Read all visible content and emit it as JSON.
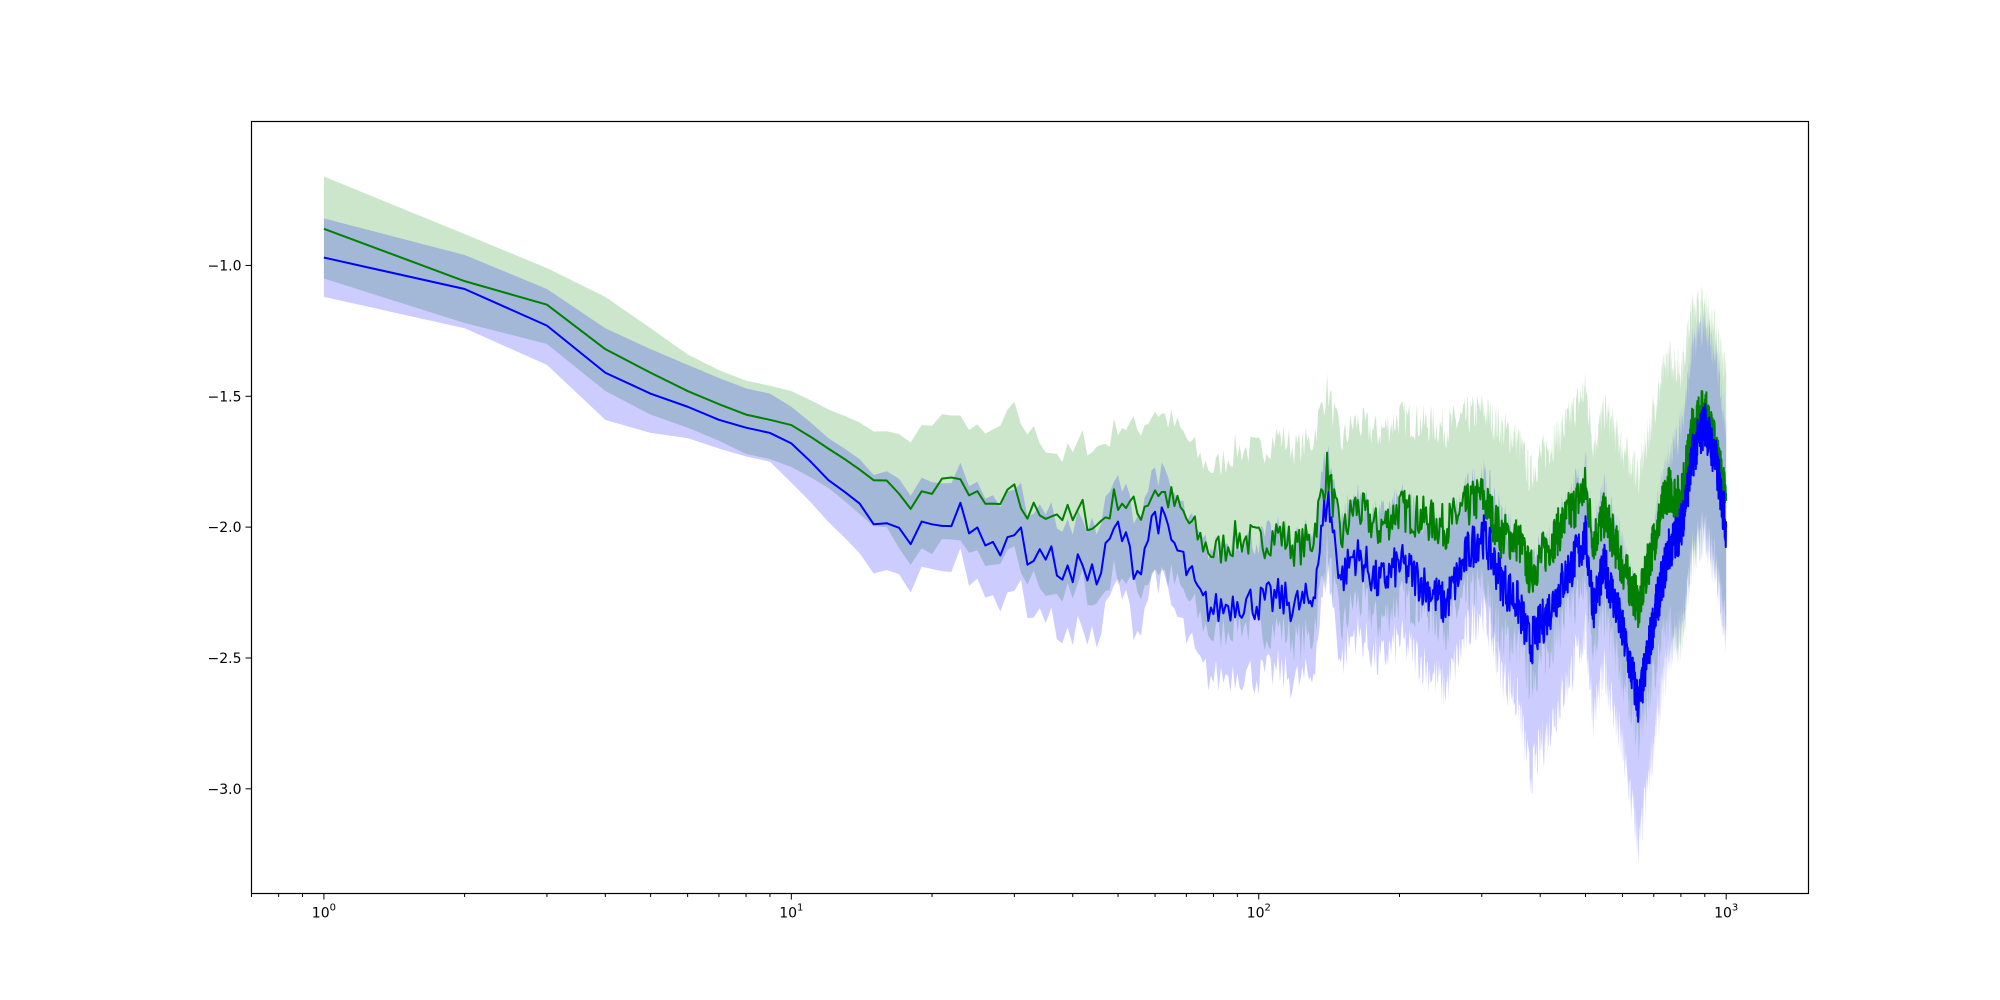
{
  "chart_data": {
    "type": "line",
    "title": "",
    "xlabel": "",
    "ylabel": "",
    "x_scale": "log",
    "xlim": [
      0.7,
      1500
    ],
    "ylim": [
      -3.4,
      -0.45
    ],
    "grid": false,
    "x_ticks": [
      {
        "value": 1,
        "base": "10",
        "exp": "0"
      },
      {
        "value": 10,
        "base": "10",
        "exp": "1"
      },
      {
        "value": 100,
        "base": "10",
        "exp": "2"
      },
      {
        "value": 1000,
        "base": "10",
        "exp": "3"
      }
    ],
    "y_ticks": [
      {
        "value": -1.0,
        "label": "−1.0"
      },
      {
        "value": -1.5,
        "label": "−1.5"
      },
      {
        "value": -2.0,
        "label": "−2.0"
      },
      {
        "value": -2.5,
        "label": "−2.5"
      },
      {
        "value": -3.0,
        "label": "−3.0"
      }
    ],
    "series": [
      {
        "color": "#008000",
        "band_color": "#008000",
        "band_opacity": 0.2,
        "x": [
          1,
          2,
          3,
          4,
          5,
          6,
          7,
          8,
          9,
          10,
          12,
          14,
          16,
          17,
          18,
          20,
          22,
          23,
          24,
          26,
          28,
          30,
          32,
          35,
          38,
          40,
          42,
          45,
          48,
          50,
          55,
          60,
          65,
          70,
          75,
          80,
          90,
          100,
          110,
          120,
          130,
          140,
          150,
          160,
          170,
          180,
          200,
          220,
          250,
          280,
          300,
          330,
          360,
          380,
          400,
          450,
          500,
          520,
          550,
          600,
          650,
          700,
          750,
          800,
          850,
          900,
          950,
          1000
        ],
        "mean": [
          -0.86,
          -1.06,
          -1.15,
          -1.32,
          -1.41,
          -1.48,
          -1.53,
          -1.57,
          -1.59,
          -1.61,
          -1.7,
          -1.78,
          -1.84,
          -1.89,
          -1.89,
          -1.87,
          -1.84,
          -1.78,
          -1.88,
          -1.93,
          -1.92,
          -1.88,
          -1.95,
          -1.93,
          -1.95,
          -1.98,
          -1.94,
          -2.0,
          -1.93,
          -1.88,
          -1.95,
          -1.85,
          -1.9,
          -1.97,
          -2.05,
          -2.1,
          -2.04,
          -2.06,
          -2.02,
          -2.08,
          -2.05,
          -1.78,
          -2.05,
          -1.92,
          -1.96,
          -2.01,
          -1.93,
          -1.96,
          -2.0,
          -1.92,
          -1.88,
          -2.03,
          -2.05,
          -2.18,
          -2.12,
          -1.98,
          -1.85,
          -2.05,
          -1.95,
          -2.15,
          -2.3,
          -2.05,
          -1.85,
          -1.9,
          -1.6,
          -1.55,
          -1.7,
          -1.9
        ],
        "upper": [
          -0.66,
          -0.88,
          -1.01,
          -1.12,
          -1.24,
          -1.34,
          -1.4,
          -1.44,
          -1.46,
          -1.48,
          -1.55,
          -1.6,
          -1.65,
          -1.66,
          -1.64,
          -1.61,
          -1.6,
          -1.54,
          -1.63,
          -1.66,
          -1.62,
          -1.56,
          -1.63,
          -1.68,
          -1.73,
          -1.72,
          -1.67,
          -1.7,
          -1.66,
          -1.6,
          -1.63,
          -1.55,
          -1.6,
          -1.66,
          -1.74,
          -1.78,
          -1.7,
          -1.71,
          -1.65,
          -1.7,
          -1.67,
          -1.47,
          -1.68,
          -1.6,
          -1.62,
          -1.64,
          -1.58,
          -1.6,
          -1.62,
          -1.58,
          -1.55,
          -1.62,
          -1.67,
          -1.8,
          -1.73,
          -1.62,
          -1.47,
          -1.68,
          -1.55,
          -1.7,
          -1.8,
          -1.55,
          -1.35,
          -1.4,
          -1.15,
          -1.15,
          -1.25,
          -1.42
        ],
        "lower": [
          -1.05,
          -1.22,
          -1.3,
          -1.48,
          -1.57,
          -1.62,
          -1.67,
          -1.72,
          -1.74,
          -1.77,
          -1.85,
          -1.95,
          -2.02,
          -2.1,
          -2.1,
          -2.1,
          -2.08,
          -2.01,
          -2.1,
          -2.17,
          -2.15,
          -2.12,
          -2.2,
          -2.22,
          -2.26,
          -2.28,
          -2.21,
          -2.3,
          -2.2,
          -2.16,
          -2.25,
          -2.15,
          -2.2,
          -2.27,
          -2.35,
          -2.42,
          -2.36,
          -2.4,
          -2.38,
          -2.44,
          -2.42,
          -2.09,
          -2.4,
          -2.28,
          -2.3,
          -2.37,
          -2.28,
          -2.3,
          -2.38,
          -2.27,
          -2.22,
          -2.42,
          -2.44,
          -2.58,
          -2.52,
          -2.35,
          -2.22,
          -2.45,
          -2.33,
          -2.58,
          -2.8,
          -2.55,
          -2.38,
          -2.42,
          -2.1,
          -2.0,
          -2.15,
          -2.4
        ]
      },
      {
        "color": "#0000ff",
        "band_color": "#0000ff",
        "band_opacity": 0.2,
        "x": [
          1,
          2,
          3,
          4,
          5,
          6,
          7,
          8,
          9,
          10,
          12,
          14,
          16,
          17,
          18,
          20,
          22,
          23,
          24,
          26,
          28,
          30,
          32,
          35,
          38,
          40,
          42,
          45,
          48,
          50,
          55,
          60,
          65,
          70,
          75,
          80,
          90,
          100,
          110,
          120,
          130,
          140,
          150,
          160,
          170,
          180,
          200,
          220,
          250,
          280,
          300,
          330,
          360,
          380,
          400,
          450,
          500,
          520,
          550,
          600,
          650,
          700,
          750,
          800,
          850,
          900,
          950,
          1000
        ],
        "mean": [
          -0.97,
          -1.09,
          -1.23,
          -1.41,
          -1.49,
          -1.54,
          -1.59,
          -1.62,
          -1.64,
          -1.68,
          -1.82,
          -1.91,
          -2.0,
          -2.03,
          -2.02,
          -1.98,
          -1.95,
          -1.88,
          -2.02,
          -2.08,
          -2.06,
          -2.0,
          -2.1,
          -2.1,
          -2.17,
          -2.2,
          -2.12,
          -2.21,
          -2.06,
          -2.0,
          -2.17,
          -1.94,
          -2.05,
          -2.16,
          -2.28,
          -2.32,
          -2.28,
          -2.29,
          -2.27,
          -2.3,
          -2.28,
          -1.88,
          -2.2,
          -2.1,
          -2.15,
          -2.22,
          -2.14,
          -2.2,
          -2.3,
          -2.1,
          -2.02,
          -2.2,
          -2.3,
          -2.45,
          -2.38,
          -2.2,
          -2.04,
          -2.3,
          -2.15,
          -2.4,
          -2.68,
          -2.35,
          -2.1,
          -2.0,
          -1.72,
          -1.6,
          -1.75,
          -2.0
        ],
        "upper": [
          -0.82,
          -0.96,
          -1.09,
          -1.24,
          -1.32,
          -1.38,
          -1.43,
          -1.47,
          -1.49,
          -1.54,
          -1.66,
          -1.74,
          -1.8,
          -1.84,
          -1.84,
          -1.82,
          -1.79,
          -1.73,
          -1.84,
          -1.9,
          -1.88,
          -1.83,
          -1.92,
          -1.93,
          -1.99,
          -2.02,
          -1.95,
          -2.02,
          -1.88,
          -1.82,
          -1.96,
          -1.77,
          -1.86,
          -1.96,
          -2.06,
          -2.09,
          -2.04,
          -2.05,
          -2.02,
          -2.05,
          -2.02,
          -1.7,
          -1.98,
          -1.88,
          -1.92,
          -1.97,
          -1.9,
          -1.94,
          -2.03,
          -1.86,
          -1.8,
          -1.95,
          -2.05,
          -2.18,
          -2.1,
          -1.93,
          -1.78,
          -2.02,
          -1.86,
          -2.08,
          -2.3,
          -2.0,
          -1.75,
          -1.62,
          -1.3,
          -1.22,
          -1.35,
          -1.6
        ],
        "lower": [
          -1.12,
          -1.24,
          -1.38,
          -1.59,
          -1.64,
          -1.66,
          -1.7,
          -1.73,
          -1.75,
          -1.83,
          -1.98,
          -2.1,
          -2.18,
          -2.21,
          -2.2,
          -2.15,
          -2.12,
          -2.05,
          -2.22,
          -2.28,
          -2.27,
          -2.21,
          -2.3,
          -2.34,
          -2.41,
          -2.44,
          -2.36,
          -2.45,
          -2.28,
          -2.22,
          -2.4,
          -2.16,
          -2.3,
          -2.42,
          -2.54,
          -2.58,
          -2.55,
          -2.57,
          -2.55,
          -2.59,
          -2.57,
          -2.15,
          -2.52,
          -2.4,
          -2.44,
          -2.52,
          -2.43,
          -2.5,
          -2.62,
          -2.4,
          -2.3,
          -2.55,
          -2.68,
          -2.95,
          -2.85,
          -2.62,
          -2.4,
          -2.72,
          -2.55,
          -2.85,
          -3.22,
          -2.82,
          -2.5,
          -2.4,
          -2.1,
          -2.02,
          -2.18,
          -2.4
        ]
      }
    ]
  }
}
